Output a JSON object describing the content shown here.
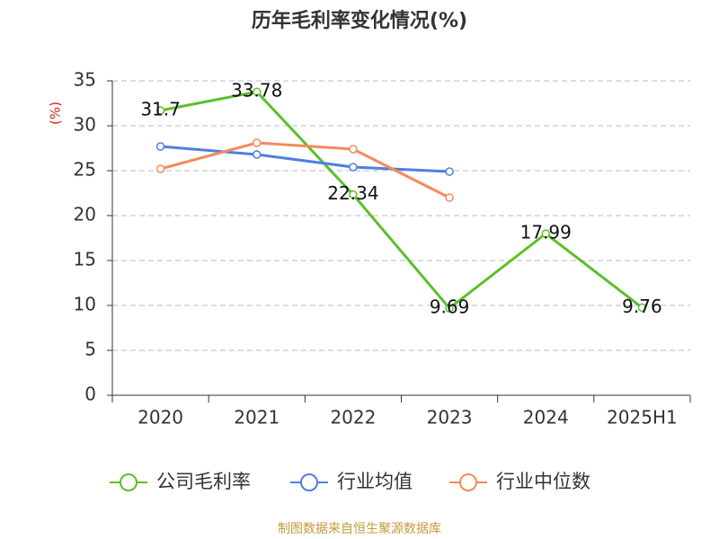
{
  "chart_data": {
    "type": "line",
    "title": "历年毛利率变化情况(%)",
    "y_label": "(%)",
    "categories": [
      "2020",
      "2021",
      "2022",
      "2023",
      "2024",
      "2025H1"
    ],
    "series": [
      {
        "name": "公司毛利率",
        "color": "#5cbf2a",
        "values": [
          31.7,
          33.78,
          22.34,
          9.69,
          17.99,
          9.76
        ],
        "data_labels": true
      },
      {
        "name": "行业均值",
        "color": "#4f7fe0",
        "values": [
          27.7,
          26.8,
          25.4,
          24.9,
          null,
          null
        ]
      },
      {
        "name": "行业中位数",
        "color": "#f58a5c",
        "values": [
          25.2,
          28.1,
          27.4,
          22.0,
          null,
          null
        ]
      }
    ],
    "ylim": [
      0,
      35
    ],
    "yticks": [
      0,
      5,
      10,
      15,
      20,
      25,
      30,
      35
    ],
    "grid": true,
    "source": "制图数据来自恒生聚源数据库"
  }
}
